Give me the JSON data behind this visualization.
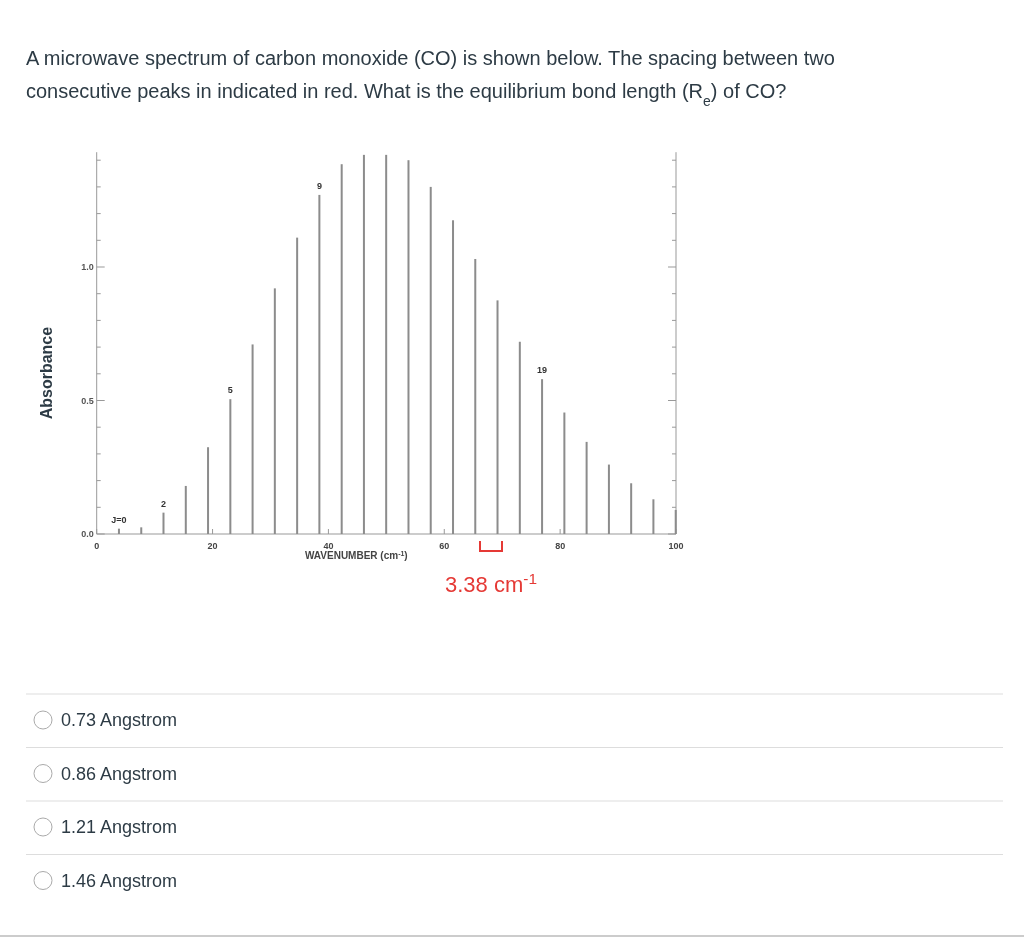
{
  "chart_data": {
    "type": "bar",
    "title": "A microwave spectrum of carbon monoxide (CO) is shown below. The spacing between two consecutive peaks in indicated in red. What is the equilibrium bond length (R$_{e}$) of CO?",
    "xlabel": "WAVENUMBER (cm$^{-1}$)",
    "ylabel": "Absorbance",
    "x": [
      3.84,
      7.69,
      11.53,
      15.38,
      19.22,
      23.07,
      26.91,
      30.75,
      34.6,
      38.44,
      42.29,
      46.13,
      49.97,
      53.82,
      57.66,
      61.51,
      65.35,
      69.19,
      73.04,
      76.88,
      80.73,
      84.57,
      88.42,
      92.26,
      96.1,
      99.95
    ],
    "series": [
      {
        "color": "#8c8c8c",
        "values": [
          0.02,
          0.025,
          0.08,
          0.18,
          0.325,
          0.505,
          0.71,
          0.92,
          1.11,
          1.27,
          1.385,
          1.42,
          1.42,
          1.4,
          1.3,
          1.175,
          1.03,
          0.875,
          0.72,
          0.58,
          0.455,
          0.345,
          0.26,
          0.19,
          0.13,
          0.09
        ]
      }
    ],
    "xlim": [
      0,
      100
    ],
    "xticks": [
      0,
      20,
      40,
      60,
      80,
      100
    ],
    "ylim": [
      0,
      1.43
    ],
    "yticks": [
      {
        "value": 0,
        "label": "0.0"
      },
      {
        "value": 0.1,
        "label": null
      },
      {
        "value": 0.2,
        "label": null
      },
      {
        "value": 0.3,
        "label": null
      },
      {
        "value": 0.4,
        "label": null
      },
      {
        "value": 0.5,
        "label": "0.5"
      },
      {
        "value": 0.6,
        "label": null
      },
      {
        "value": 0.7,
        "label": null
      },
      {
        "value": 0.8,
        "label": null
      },
      {
        "value": 0.9,
        "label": null
      },
      {
        "value": 1,
        "label": "1.0"
      },
      {
        "value": 1.1,
        "label": null
      },
      {
        "value": 1.2,
        "label": null
      },
      {
        "value": 1.3,
        "label": null
      },
      {
        "value": 1.4,
        "label": null
      }
    ],
    "annotations": [
      {
        "text": "J=0",
        "x": 3.84,
        "y": 0.02
      },
      {
        "text": "2",
        "x": 11.53,
        "y": 0.08
      },
      {
        "text": "5",
        "x": 23.07,
        "y": 0.505
      },
      {
        "text": "9",
        "x": 38.44,
        "y": 1.27
      },
      {
        "text": "19",
        "x": 76.88,
        "y": 0.58
      },
      "3.38 cm$^{-1}$",
      "0.73 Angstrom",
      "0.86 Angstrom",
      "1.21 Angstrom",
      "1.46 Angstrom"
    ],
    "grid": false
  }
}
